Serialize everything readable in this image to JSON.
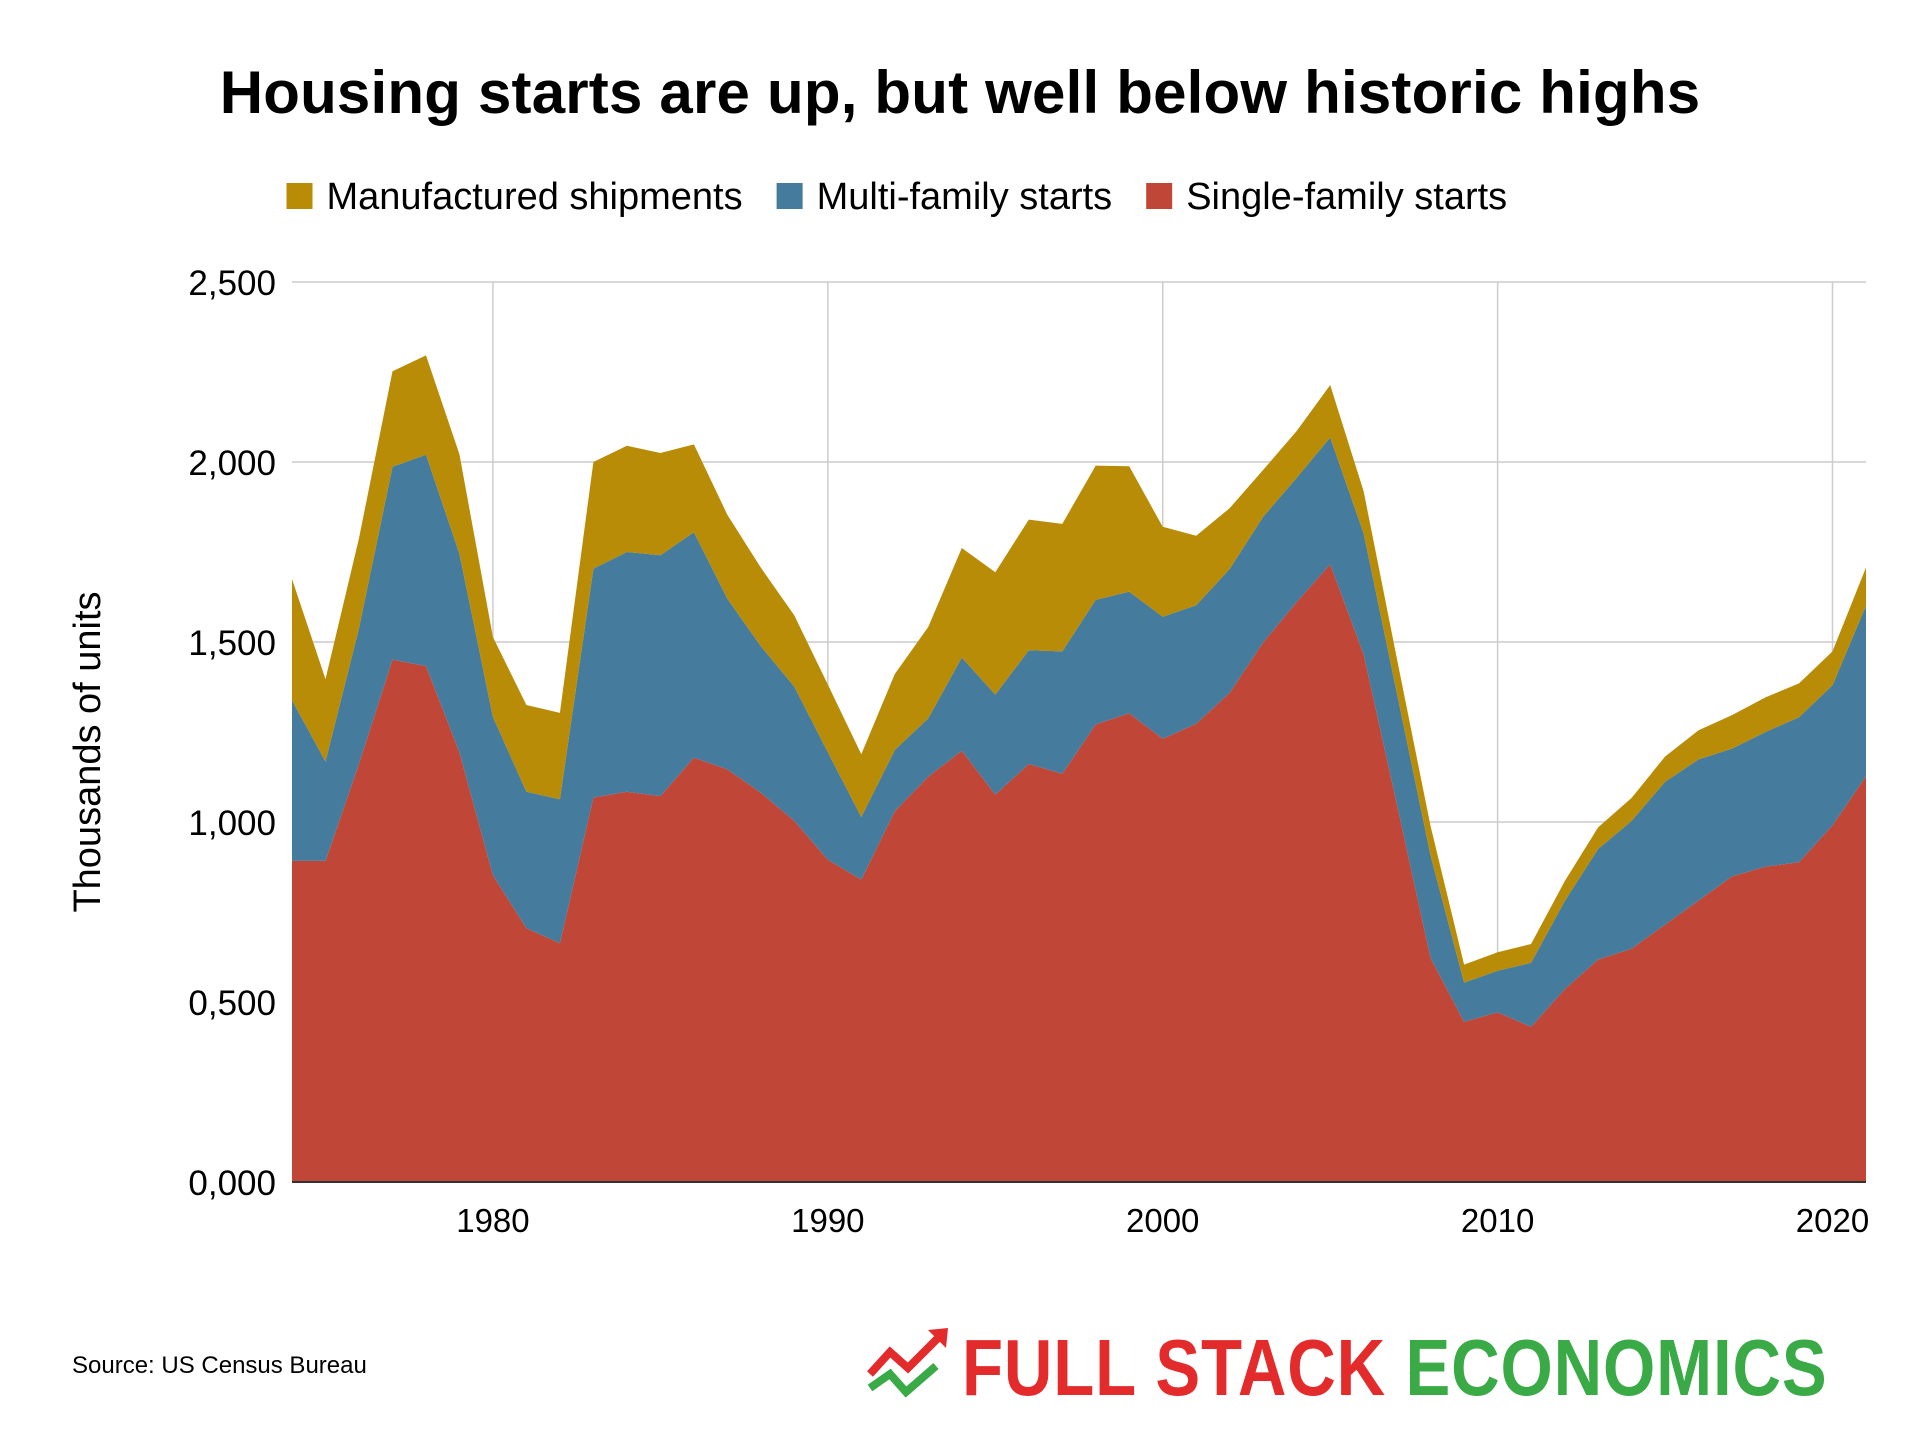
{
  "chart_data": {
    "type": "area",
    "stacked": true,
    "title": "Housing starts are up, but well below historic highs",
    "ylabel": "Thousands of units",
    "xlabel": "",
    "xlim": [
      1974,
      2021
    ],
    "ylim": [
      0,
      2500
    ],
    "x_ticks": [
      "1980",
      "1990",
      "2000",
      "2010",
      "2020"
    ],
    "y_ticks": [
      "0,000",
      "0,500",
      "1,000",
      "1,500",
      "2,000",
      "2,500"
    ],
    "grid": true,
    "legend_position": "top-center",
    "x": [
      1974,
      1975,
      1976,
      1977,
      1978,
      1979,
      1980,
      1981,
      1982,
      1983,
      1984,
      1985,
      1986,
      1987,
      1988,
      1989,
      1990,
      1991,
      1992,
      1993,
      1994,
      1995,
      1996,
      1997,
      1998,
      1999,
      2000,
      2001,
      2002,
      2003,
      2004,
      2005,
      2006,
      2007,
      2008,
      2009,
      2010,
      2011,
      2012,
      2013,
      2014,
      2015,
      2016,
      2017,
      2018,
      2019,
      2020,
      2021
    ],
    "series": [
      {
        "name": "Single-family starts",
        "color": "#c04737",
        "values": [
          892,
          892,
          1162,
          1451,
          1433,
          1194,
          852,
          705,
          663,
          1068,
          1084,
          1072,
          1179,
          1146,
          1081,
          1003,
          895,
          840,
          1030,
          1126,
          1198,
          1076,
          1161,
          1134,
          1271,
          1302,
          1231,
          1273,
          1359,
          1499,
          1611,
          1716,
          1465,
          1046,
          622,
          445,
          471,
          431,
          535,
          618,
          648,
          715,
          782,
          849,
          876,
          888,
          991,
          1127
        ]
      },
      {
        "name": "Multi-family starts",
        "color": "#457b9d",
        "values": [
          446,
          276,
          376,
          536,
          587,
          551,
          440,
          379,
          400,
          636,
          666,
          669,
          626,
          474,
          407,
          373,
          299,
          174,
          170,
          162,
          259,
          278,
          316,
          340,
          346,
          338,
          339,
          329,
          344,
          349,
          345,
          352,
          336,
          309,
          284,
          109,
          116,
          178,
          245,
          307,
          355,
          397,
          392,
          355,
          374,
          403,
          389,
          474
        ]
      },
      {
        "name": "Manufactured shipments",
        "color": "#b98c07",
        "values": [
          337,
          229,
          250,
          265,
          276,
          277,
          222,
          241,
          240,
          296,
          295,
          284,
          244,
          233,
          218,
          198,
          188,
          174,
          211,
          254,
          304,
          340,
          363,
          354,
          373,
          348,
          250,
          193,
          169,
          130,
          130,
          146,
          117,
          96,
          82,
          50,
          51,
          52,
          55,
          60,
          64,
          70,
          81,
          93,
          96,
          94,
          94,
          106
        ]
      }
    ]
  },
  "source_note": "Source: US Census Bureau",
  "logo": {
    "word1": "FULL STACK",
    "word2": "ECONOMICS",
    "icon": "trend-arrows-icon"
  }
}
